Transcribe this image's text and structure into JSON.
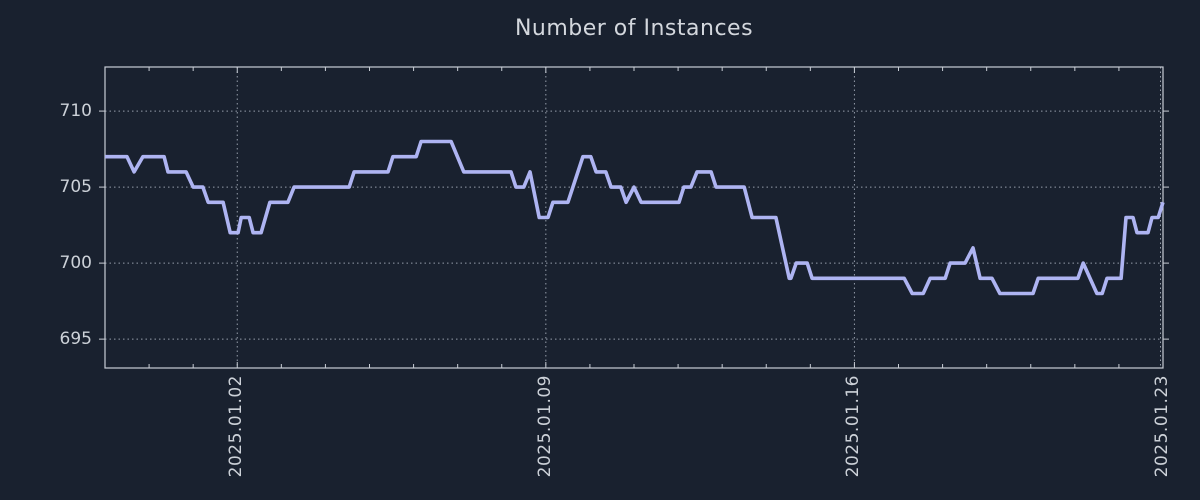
{
  "page": {
    "background_color": "#19212f",
    "text_color": "#ccd1d8",
    "frame_color": "#c9ced6",
    "grid_color": "#959daa"
  },
  "chart_data": {
    "type": "line",
    "title": "Number of Instances",
    "xlabel": "",
    "ylabel": "",
    "legend": "none",
    "grid": "dotted, at major x and y ticks",
    "line_color": "#aeb4f2",
    "x_unit": "day_index (0 = left edge of plot, weekly labeled ticks, minor tick every day)",
    "xlim": [
      0,
      24
    ],
    "ylim": [
      693.1,
      712.9
    ],
    "x_ticks": [
      {
        "day": 3,
        "label": "2025.01.02"
      },
      {
        "day": 10,
        "label": "2025.01.09"
      },
      {
        "day": 17,
        "label": "2025.01.16"
      },
      {
        "day": 24,
        "label": "2025.01.23"
      }
    ],
    "y_ticks": [
      {
        "value": 710,
        "label": "710"
      },
      {
        "value": 705,
        "label": "705"
      },
      {
        "value": 700,
        "label": "700"
      },
      {
        "value": 695,
        "label": "695"
      }
    ],
    "series": [
      {
        "name": "instances",
        "points": [
          [
            0,
            707
          ],
          [
            0.5,
            707
          ],
          [
            0.66,
            706
          ],
          [
            0.86,
            707
          ],
          [
            1.34,
            707
          ],
          [
            1.43,
            706
          ],
          [
            1.84,
            706
          ],
          [
            2.0,
            705
          ],
          [
            2.22,
            705
          ],
          [
            2.34,
            704
          ],
          [
            2.68,
            704
          ],
          [
            2.84,
            702
          ],
          [
            3.02,
            702
          ],
          [
            3.09,
            703
          ],
          [
            3.27,
            703
          ],
          [
            3.36,
            702
          ],
          [
            3.54,
            702
          ],
          [
            3.74,
            704
          ],
          [
            4.15,
            704
          ],
          [
            4.29,
            705
          ],
          [
            5.54,
            705
          ],
          [
            5.65,
            706
          ],
          [
            6.42,
            706
          ],
          [
            6.53,
            707
          ],
          [
            7.06,
            707
          ],
          [
            7.17,
            708
          ],
          [
            7.85,
            708
          ],
          [
            8.14,
            706
          ],
          [
            9.21,
            706
          ],
          [
            9.32,
            705
          ],
          [
            9.5,
            705
          ],
          [
            9.64,
            706
          ],
          [
            9.85,
            703
          ],
          [
            10.05,
            703
          ],
          [
            10.16,
            704
          ],
          [
            10.5,
            704
          ],
          [
            10.84,
            707
          ],
          [
            11.02,
            707
          ],
          [
            11.14,
            706
          ],
          [
            11.36,
            706
          ],
          [
            11.48,
            705
          ],
          [
            11.7,
            705
          ],
          [
            11.82,
            704
          ],
          [
            12.0,
            705
          ],
          [
            12.16,
            704
          ],
          [
            13.02,
            704
          ],
          [
            13.13,
            705
          ],
          [
            13.29,
            705
          ],
          [
            13.43,
            706
          ],
          [
            13.75,
            706
          ],
          [
            13.86,
            705
          ],
          [
            14.5,
            705
          ],
          [
            14.68,
            703
          ],
          [
            15.22,
            703
          ],
          [
            15.52,
            699
          ],
          [
            15.56,
            699
          ],
          [
            15.68,
            700
          ],
          [
            15.93,
            700
          ],
          [
            16.04,
            699
          ],
          [
            18.13,
            699
          ],
          [
            18.31,
            698
          ],
          [
            18.56,
            698
          ],
          [
            18.72,
            699
          ],
          [
            19.06,
            699
          ],
          [
            19.17,
            700
          ],
          [
            19.51,
            700
          ],
          [
            19.69,
            701
          ],
          [
            19.85,
            699
          ],
          [
            20.12,
            699
          ],
          [
            20.3,
            698
          ],
          [
            21.05,
            698
          ],
          [
            21.17,
            699
          ],
          [
            22.07,
            699
          ],
          [
            22.19,
            700
          ],
          [
            22.5,
            698
          ],
          [
            22.62,
            698
          ],
          [
            22.73,
            699
          ],
          [
            23.05,
            699
          ],
          [
            23.16,
            703
          ],
          [
            23.32,
            703
          ],
          [
            23.41,
            702
          ],
          [
            23.66,
            702
          ],
          [
            23.75,
            703
          ],
          [
            23.89,
            703
          ],
          [
            24,
            704
          ]
        ]
      }
    ]
  }
}
